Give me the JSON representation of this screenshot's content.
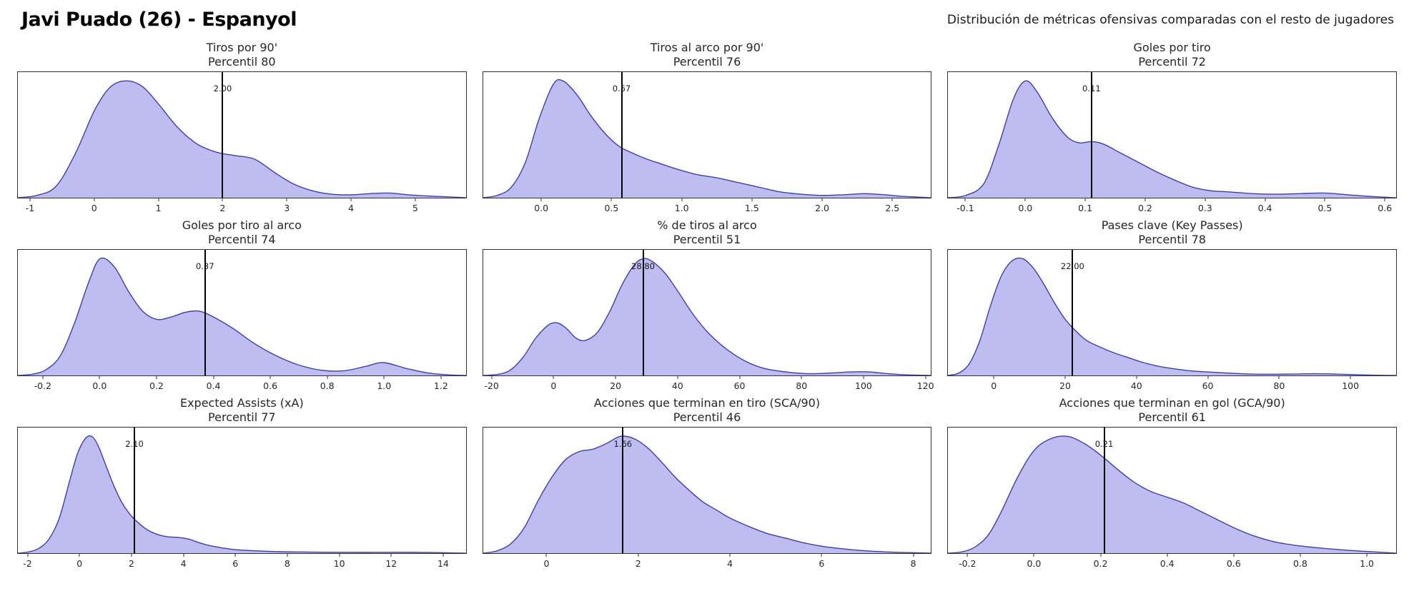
{
  "header": {
    "title": "Javi Puado (26) - Espanyol",
    "subtitle": "Distribución de métricas ofensivas comparadas con el resto de jugadores"
  },
  "style": {
    "curve_stroke": "#3c3cbe",
    "curve_fill": "rgba(115,115,220,0.47)",
    "marker_color": "#000000"
  },
  "chart_data": [
    {
      "type": "area",
      "kind": "kde-density",
      "title": "Tiros por 90'",
      "subtitle": "Percentil 80",
      "percentile": 80,
      "player_value": 2.0,
      "player_value_label": "2.00",
      "xlim": [
        -1.2,
        5.8
      ],
      "xticks": [
        -1,
        0,
        1,
        2,
        3,
        4,
        5
      ],
      "xtick_labels": [
        "-1",
        "0",
        "1",
        "2",
        "3",
        "4",
        "5"
      ],
      "density": {
        "x": [
          -1.2,
          -0.9,
          -0.6,
          -0.3,
          0,
          0.25,
          0.5,
          0.75,
          1.0,
          1.3,
          1.6,
          1.9,
          2.2,
          2.5,
          2.8,
          3.1,
          3.4,
          3.7,
          4.0,
          4.3,
          4.6,
          4.9,
          5.2,
          5.5,
          5.8
        ],
        "y": [
          0,
          0.02,
          0.1,
          0.38,
          0.75,
          0.95,
          1.0,
          0.95,
          0.8,
          0.6,
          0.46,
          0.39,
          0.36,
          0.33,
          0.22,
          0.12,
          0.06,
          0.03,
          0.025,
          0.035,
          0.04,
          0.025,
          0.015,
          0.008,
          0
        ]
      }
    },
    {
      "type": "area",
      "kind": "kde-density",
      "title": "Tiros al arco por 90'",
      "subtitle": "Percentil 76",
      "percentile": 76,
      "player_value": 0.57,
      "player_value_label": "0.57",
      "xlim": [
        -0.42,
        2.78
      ],
      "xticks": [
        0.0,
        0.5,
        1.0,
        1.5,
        2.0,
        2.5
      ],
      "xtick_labels": [
        "0.0",
        "0.5",
        "1.0",
        "1.5",
        "2.0",
        "2.5"
      ],
      "density": {
        "x": [
          -0.42,
          -0.32,
          -0.22,
          -0.12,
          -0.02,
          0.08,
          0.15,
          0.25,
          0.35,
          0.45,
          0.55,
          0.65,
          0.75,
          0.85,
          0.95,
          1.1,
          1.25,
          1.4,
          1.55,
          1.7,
          1.85,
          2.0,
          2.15,
          2.3,
          2.45,
          2.6,
          2.78
        ],
        "y": [
          0,
          0.02,
          0.09,
          0.3,
          0.68,
          0.97,
          1.0,
          0.88,
          0.7,
          0.55,
          0.44,
          0.38,
          0.33,
          0.29,
          0.25,
          0.2,
          0.17,
          0.13,
          0.09,
          0.05,
          0.03,
          0.02,
          0.025,
          0.035,
          0.025,
          0.01,
          0
        ]
      }
    },
    {
      "type": "area",
      "kind": "kde-density",
      "title": "Goles por tiro",
      "subtitle": "Percentil 72",
      "percentile": 72,
      "player_value": 0.11,
      "player_value_label": "0.11",
      "xlim": [
        -0.13,
        0.62
      ],
      "xticks": [
        -0.1,
        0.0,
        0.1,
        0.2,
        0.3,
        0.4,
        0.5,
        0.6
      ],
      "xtick_labels": [
        "-0.1",
        "0.0",
        "0.1",
        "0.2",
        "0.3",
        "0.4",
        "0.5",
        "0.6"
      ],
      "density": {
        "x": [
          -0.13,
          -0.1,
          -0.07,
          -0.045,
          -0.02,
          0.0,
          0.02,
          0.045,
          0.07,
          0.09,
          0.11,
          0.13,
          0.16,
          0.19,
          0.22,
          0.25,
          0.28,
          0.31,
          0.34,
          0.38,
          0.42,
          0.46,
          0.5,
          0.54,
          0.58,
          0.62
        ],
        "y": [
          0,
          0.02,
          0.12,
          0.45,
          0.85,
          1.0,
          0.9,
          0.68,
          0.52,
          0.47,
          0.48,
          0.46,
          0.38,
          0.3,
          0.22,
          0.15,
          0.09,
          0.06,
          0.05,
          0.035,
          0.03,
          0.035,
          0.04,
          0.025,
          0.01,
          0
        ]
      }
    },
    {
      "type": "area",
      "kind": "kde-density",
      "title": "Goles por tiro al arco",
      "subtitle": "Percentil 74",
      "percentile": 74,
      "player_value": 0.37,
      "player_value_label": "0.37",
      "xlim": [
        -0.29,
        1.29
      ],
      "xticks": [
        -0.2,
        0.0,
        0.2,
        0.4,
        0.6,
        0.8,
        1.0,
        1.2
      ],
      "xtick_labels": [
        "-0.2",
        "0.0",
        "0.2",
        "0.4",
        "0.6",
        "0.8",
        "1.0",
        "1.2"
      ],
      "density": {
        "x": [
          -0.29,
          -0.24,
          -0.19,
          -0.14,
          -0.09,
          -0.04,
          0.0,
          0.05,
          0.1,
          0.15,
          0.2,
          0.25,
          0.3,
          0.35,
          0.4,
          0.47,
          0.54,
          0.62,
          0.7,
          0.78,
          0.86,
          0.94,
          1.0,
          1.08,
          1.16,
          1.23,
          1.29
        ],
        "y": [
          0,
          0.01,
          0.05,
          0.17,
          0.45,
          0.8,
          1.0,
          0.93,
          0.72,
          0.55,
          0.48,
          0.5,
          0.54,
          0.55,
          0.5,
          0.4,
          0.28,
          0.17,
          0.09,
          0.045,
          0.04,
          0.08,
          0.11,
          0.06,
          0.02,
          0.005,
          0
        ]
      }
    },
    {
      "type": "area",
      "kind": "kde-density",
      "title": "% de tiros al arco",
      "subtitle": "Percentil 51",
      "percentile": 51,
      "player_value": 28.8,
      "player_value_label": "28.80",
      "xlim": [
        -23,
        122
      ],
      "xticks": [
        -20,
        0,
        20,
        40,
        60,
        80,
        100,
        120
      ],
      "xtick_labels": [
        "-20",
        "0",
        "20",
        "40",
        "60",
        "80",
        "100",
        "120"
      ],
      "density": {
        "x": [
          -23,
          -18,
          -14,
          -10,
          -6,
          -2,
          1,
          4,
          7,
          10,
          14,
          18,
          22,
          26,
          29,
          32,
          36,
          40,
          45,
          50,
          56,
          62,
          68,
          75,
          82,
          89,
          96,
          102,
          108,
          114,
          122
        ],
        "y": [
          0,
          0.01,
          0.05,
          0.16,
          0.32,
          0.43,
          0.45,
          0.4,
          0.32,
          0.3,
          0.37,
          0.55,
          0.78,
          0.95,
          1.0,
          0.97,
          0.87,
          0.72,
          0.52,
          0.36,
          0.22,
          0.12,
          0.06,
          0.03,
          0.015,
          0.02,
          0.03,
          0.03,
          0.015,
          0.005,
          0
        ]
      }
    },
    {
      "type": "area",
      "kind": "kde-density",
      "title": "Pases clave (Key Passes)",
      "subtitle": "Percentil 78",
      "percentile": 78,
      "player_value": 22.0,
      "player_value_label": "22.00",
      "xlim": [
        -13,
        113
      ],
      "xticks": [
        0,
        20,
        40,
        60,
        80,
        100
      ],
      "xtick_labels": [
        "0",
        "20",
        "40",
        "60",
        "80",
        "100"
      ],
      "density": {
        "x": [
          -13,
          -10,
          -7,
          -4,
          -1,
          2,
          5,
          8,
          11,
          14,
          17,
          20,
          23,
          26,
          30,
          34,
          38,
          42,
          46,
          50,
          55,
          60,
          66,
          72,
          78,
          84,
          90,
          96,
          102,
          108,
          113
        ],
        "y": [
          0,
          0.02,
          0.1,
          0.3,
          0.6,
          0.85,
          0.98,
          1.0,
          0.92,
          0.78,
          0.62,
          0.48,
          0.38,
          0.3,
          0.24,
          0.19,
          0.15,
          0.11,
          0.08,
          0.06,
          0.04,
          0.03,
          0.02,
          0.012,
          0.01,
          0.012,
          0.015,
          0.012,
          0.006,
          0.002,
          0
        ]
      }
    },
    {
      "type": "area",
      "kind": "kde-density",
      "title": "Expected Assists (xA)",
      "subtitle": "Percentil 77",
      "percentile": 77,
      "player_value": 2.1,
      "player_value_label": "2.10",
      "xlim": [
        -2.4,
        14.9
      ],
      "xticks": [
        -2,
        0,
        2,
        4,
        6,
        8,
        10,
        12,
        14
      ],
      "xtick_labels": [
        "-2",
        "0",
        "2",
        "4",
        "6",
        "8",
        "10",
        "12",
        "14"
      ],
      "density": {
        "x": [
          -2.4,
          -2.0,
          -1.6,
          -1.2,
          -0.8,
          -0.4,
          -0.1,
          0.2,
          0.45,
          0.7,
          1.0,
          1.3,
          1.6,
          1.9,
          2.2,
          2.6,
          3.0,
          3.4,
          3.8,
          4.2,
          4.6,
          5.0,
          5.5,
          6.0,
          6.8,
          7.6,
          8.5,
          9.5,
          10.5,
          11.5,
          12.5,
          13.5,
          14.9
        ],
        "y": [
          0,
          0.01,
          0.04,
          0.12,
          0.3,
          0.62,
          0.85,
          0.98,
          1.0,
          0.92,
          0.75,
          0.58,
          0.44,
          0.34,
          0.27,
          0.2,
          0.16,
          0.14,
          0.135,
          0.12,
          0.09,
          0.065,
          0.045,
          0.03,
          0.02,
          0.013,
          0.01,
          0.008,
          0.007,
          0.007,
          0.008,
          0.006,
          0
        ]
      }
    },
    {
      "type": "area",
      "kind": "kde-density",
      "title": "Acciones que terminan en tiro (SCA/90)",
      "subtitle": "Percentil 46",
      "percentile": 46,
      "player_value": 1.66,
      "player_value_label": "1.66",
      "xlim": [
        -1.4,
        8.4
      ],
      "xticks": [
        0,
        2,
        4,
        6,
        8
      ],
      "xtick_labels": [
        "0",
        "2",
        "4",
        "6",
        "8"
      ],
      "density": {
        "x": [
          -1.4,
          -1.1,
          -0.8,
          -0.5,
          -0.2,
          0.1,
          0.4,
          0.7,
          1.0,
          1.3,
          1.6,
          1.9,
          2.2,
          2.5,
          2.8,
          3.1,
          3.4,
          3.7,
          4.0,
          4.4,
          4.8,
          5.2,
          5.6,
          6.0,
          6.4,
          6.8,
          7.2,
          7.6,
          8.0,
          8.4
        ],
        "y": [
          0,
          0.02,
          0.08,
          0.22,
          0.45,
          0.65,
          0.8,
          0.87,
          0.89,
          0.94,
          1.0,
          0.98,
          0.9,
          0.78,
          0.65,
          0.54,
          0.44,
          0.37,
          0.3,
          0.23,
          0.17,
          0.13,
          0.09,
          0.06,
          0.04,
          0.025,
          0.015,
          0.008,
          0.004,
          0
        ]
      }
    },
    {
      "type": "area",
      "kind": "kde-density",
      "title": "Acciones que terminan en gol (GCA/90)",
      "subtitle": "Percentil 61",
      "percentile": 61,
      "player_value": 0.21,
      "player_value_label": "0.21",
      "xlim": [
        -0.26,
        1.09
      ],
      "xticks": [
        -0.2,
        0.0,
        0.2,
        0.4,
        0.6,
        0.8,
        1.0
      ],
      "xtick_labels": [
        "-0.2",
        "0.0",
        "0.2",
        "0.4",
        "0.6",
        "0.8",
        "1.0"
      ],
      "density": {
        "x": [
          -0.26,
          -0.22,
          -0.18,
          -0.14,
          -0.1,
          -0.05,
          0.0,
          0.05,
          0.1,
          0.15,
          0.2,
          0.25,
          0.3,
          0.35,
          0.4,
          0.45,
          0.5,
          0.55,
          0.6,
          0.66,
          0.72,
          0.78,
          0.84,
          0.9,
          0.97,
          1.03,
          1.09
        ],
        "y": [
          0,
          0.01,
          0.05,
          0.15,
          0.35,
          0.65,
          0.88,
          0.98,
          1.0,
          0.94,
          0.84,
          0.72,
          0.61,
          0.53,
          0.48,
          0.43,
          0.36,
          0.29,
          0.22,
          0.15,
          0.1,
          0.07,
          0.05,
          0.035,
          0.02,
          0.01,
          0
        ]
      }
    }
  ]
}
